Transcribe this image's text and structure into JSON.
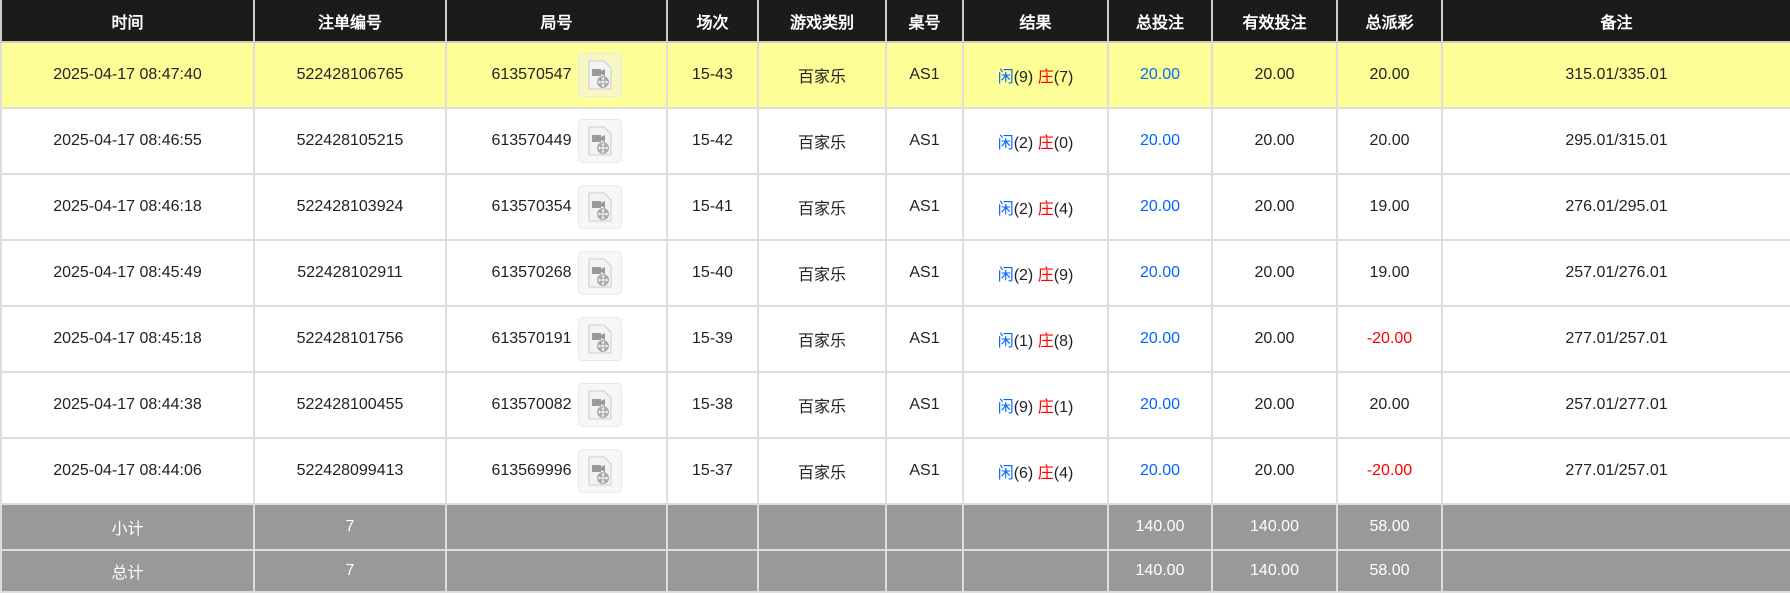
{
  "headers": [
    "时间",
    "注单编号",
    "局号",
    "场次",
    "游戏类别",
    "桌号",
    "结果",
    "总投注",
    "有效投注",
    "总派彩",
    "备注"
  ],
  "colors": {
    "header_bg": "#1b1b1b",
    "highlight_row": "#fefe96",
    "footer_bg": "#999999",
    "player": "#0066ff",
    "banker": "#ff0000"
  },
  "rows": [
    {
      "time": "2025-04-17 08:47:40",
      "bet_id": "522428106765",
      "round": "613570547",
      "shoe": "15-43",
      "game": "百家乐",
      "table": "AS1",
      "p_label": "闲",
      "p_val": "(9)",
      "b_label": "庄",
      "b_val": "(7)",
      "total_bet": "20.00",
      "valid_bet": "20.00",
      "payout": "20.00",
      "payout_negative": false,
      "note": "315.01/335.01",
      "highlighted": true
    },
    {
      "time": "2025-04-17 08:46:55",
      "bet_id": "522428105215",
      "round": "613570449",
      "shoe": "15-42",
      "game": "百家乐",
      "table": "AS1",
      "p_label": "闲",
      "p_val": "(2)",
      "b_label": "庄",
      "b_val": "(0)",
      "total_bet": "20.00",
      "valid_bet": "20.00",
      "payout": "20.00",
      "payout_negative": false,
      "note": "295.01/315.01"
    },
    {
      "time": "2025-04-17 08:46:18",
      "bet_id": "522428103924",
      "round": "613570354",
      "shoe": "15-41",
      "game": "百家乐",
      "table": "AS1",
      "p_label": "闲",
      "p_val": "(2)",
      "b_label": "庄",
      "b_val": "(4)",
      "total_bet": "20.00",
      "valid_bet": "20.00",
      "payout": "19.00",
      "payout_negative": false,
      "note": "276.01/295.01"
    },
    {
      "time": "2025-04-17 08:45:49",
      "bet_id": "522428102911",
      "round": "613570268",
      "shoe": "15-40",
      "game": "百家乐",
      "table": "AS1",
      "p_label": "闲",
      "p_val": "(2)",
      "b_label": "庄",
      "b_val": "(9)",
      "total_bet": "20.00",
      "valid_bet": "20.00",
      "payout": "19.00",
      "payout_negative": false,
      "note": "257.01/276.01"
    },
    {
      "time": "2025-04-17 08:45:18",
      "bet_id": "522428101756",
      "round": "613570191",
      "shoe": "15-39",
      "game": "百家乐",
      "table": "AS1",
      "p_label": "闲",
      "p_val": "(1)",
      "b_label": "庄",
      "b_val": "(8)",
      "total_bet": "20.00",
      "valid_bet": "20.00",
      "payout": "-20.00",
      "payout_negative": true,
      "note": "277.01/257.01"
    },
    {
      "time": "2025-04-17 08:44:38",
      "bet_id": "522428100455",
      "round": "613570082",
      "shoe": "15-38",
      "game": "百家乐",
      "table": "AS1",
      "p_label": "闲",
      "p_val": "(9)",
      "b_label": "庄",
      "b_val": "(1)",
      "total_bet": "20.00",
      "valid_bet": "20.00",
      "payout": "20.00",
      "payout_negative": false,
      "note": "257.01/277.01"
    },
    {
      "time": "2025-04-17 08:44:06",
      "bet_id": "522428099413",
      "round": "613569996",
      "shoe": "15-37",
      "game": "百家乐",
      "table": "AS1",
      "p_label": "闲",
      "p_val": "(6)",
      "b_label": "庄",
      "b_val": "(4)",
      "total_bet": "20.00",
      "valid_bet": "20.00",
      "payout": "-20.00",
      "payout_negative": true,
      "note": "277.01/257.01"
    }
  ],
  "subtotal": {
    "label": "小计",
    "count": "7",
    "total_bet": "140.00",
    "valid_bet": "140.00",
    "payout": "58.00"
  },
  "total": {
    "label": "总计",
    "count": "7",
    "total_bet": "140.00",
    "valid_bet": "140.00",
    "payout": "58.00"
  },
  "icons": {
    "replay": "video-file-icon"
  }
}
